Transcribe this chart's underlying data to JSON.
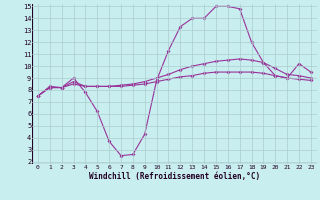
{
  "xlabel": "Windchill (Refroidissement éolien,°C)",
  "x": [
    0,
    1,
    2,
    3,
    4,
    5,
    6,
    7,
    8,
    9,
    10,
    11,
    12,
    13,
    14,
    15,
    16,
    17,
    18,
    19,
    20,
    21,
    22,
    23
  ],
  "line1": [
    7.5,
    8.3,
    8.2,
    9.0,
    7.8,
    6.2,
    3.7,
    2.5,
    2.6,
    4.3,
    8.8,
    11.3,
    13.3,
    14.0,
    14.0,
    15.0,
    15.0,
    14.8,
    12.0,
    10.3,
    9.2,
    9.0,
    10.2,
    9.5
  ],
  "line2": [
    7.5,
    8.2,
    8.2,
    8.7,
    8.3,
    8.3,
    8.3,
    8.4,
    8.5,
    8.7,
    9.0,
    9.3,
    9.7,
    10.0,
    10.2,
    10.4,
    10.5,
    10.6,
    10.5,
    10.3,
    9.8,
    9.3,
    9.2,
    9.0
  ],
  "line3": [
    7.5,
    8.2,
    8.2,
    8.5,
    8.3,
    8.3,
    8.3,
    8.3,
    8.4,
    8.5,
    8.7,
    8.9,
    9.1,
    9.2,
    9.4,
    9.5,
    9.5,
    9.5,
    9.5,
    9.4,
    9.2,
    9.0,
    8.9,
    8.8
  ],
  "line_color": "#993399",
  "bg_color": "#c8eef0",
  "ylim": [
    2,
    15
  ],
  "yticks": [
    2,
    3,
    4,
    5,
    6,
    7,
    8,
    9,
    10,
    11,
    12,
    13,
    14,
    15
  ],
  "grid_color": "#aacccc"
}
